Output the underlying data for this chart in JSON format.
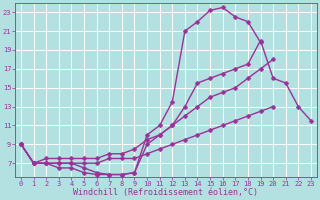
{
  "background_color": "#b3e0e0",
  "grid_color": "#ffffff",
  "line_color": "#993399",
  "marker": "D",
  "markersize": 2.5,
  "linewidth": 1.0,
  "xlabel": "Windchill (Refroidissement éolien,°C)",
  "xlabel_fontsize": 6,
  "xtick_fontsize": 5,
  "ytick_fontsize": 5,
  "xlim": [
    -0.5,
    23.5
  ],
  "ylim": [
    5.5,
    24
  ],
  "xticks": [
    0,
    1,
    2,
    3,
    4,
    5,
    6,
    7,
    8,
    9,
    10,
    11,
    12,
    13,
    14,
    15,
    16,
    17,
    18,
    19,
    20,
    21,
    22,
    23
  ],
  "yticks": [
    7,
    9,
    11,
    13,
    15,
    17,
    19,
    21,
    23
  ],
  "lines": [
    {
      "x": [
        0,
        1,
        2,
        3,
        4,
        5,
        6,
        7,
        8,
        9,
        10,
        11,
        12,
        13,
        14,
        15,
        16,
        17,
        18,
        19
      ],
      "y": [
        9,
        7,
        7,
        6.5,
        6.5,
        6,
        5.8,
        5.8,
        5.8,
        6,
        10,
        11,
        13.5,
        21,
        22,
        23.2,
        23.5,
        22.5,
        22,
        19.8
      ]
    },
    {
      "x": [
        0,
        1,
        2,
        3,
        4,
        5,
        6,
        7,
        8,
        9,
        10,
        11,
        12,
        13,
        14,
        15,
        16,
        17,
        18,
        19,
        20,
        21,
        22,
        23
      ],
      "y": [
        9,
        7,
        7,
        7,
        7,
        6.5,
        6,
        5.8,
        5.8,
        6,
        9,
        10,
        11,
        13,
        15.5,
        16,
        16.5,
        17,
        17.5,
        20,
        16,
        15.5,
        13,
        11.5
      ]
    },
    {
      "x": [
        0,
        1,
        2,
        3,
        4,
        5,
        6,
        7,
        8,
        9,
        10,
        11,
        12,
        13,
        14,
        15,
        16,
        17,
        18,
        19,
        20
      ],
      "y": [
        9,
        7,
        7.5,
        7.5,
        7.5,
        7.5,
        7.5,
        8,
        8,
        8.5,
        9.5,
        10,
        11,
        12,
        13,
        14,
        14.5,
        15,
        16,
        17,
        18
      ]
    },
    {
      "x": [
        0,
        1,
        2,
        3,
        4,
        5,
        6,
        7,
        8,
        9,
        10,
        11,
        12,
        13,
        14,
        15,
        16,
        17,
        18,
        19,
        20,
        21,
        22,
        23
      ],
      "y": [
        9,
        7,
        7,
        7,
        7,
        7,
        7,
        7.5,
        7.5,
        7.5,
        8,
        8.5,
        9,
        9.5,
        10,
        10.5,
        11,
        11.5,
        12,
        12.5,
        13,
        null,
        null,
        null
      ]
    }
  ]
}
